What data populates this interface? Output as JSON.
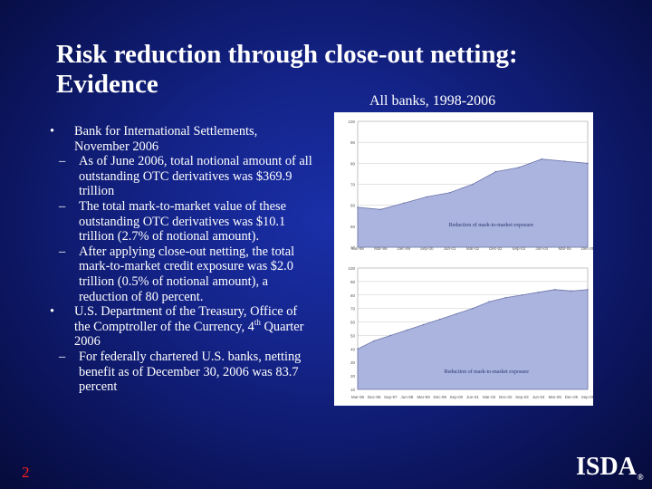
{
  "slide": {
    "title_line1": "Risk reduction through close-out netting:",
    "title_line2": "Evidence",
    "subtitle": "All banks, 1998-2006",
    "page_number": "2",
    "logo": "ISDA",
    "logo_mark": "®"
  },
  "bullets": [
    {
      "marker": "•",
      "text": "Bank for International Settlements, November 2006",
      "subs": [
        "As of June 2006, total notional amount of all outstanding OTC derivatives was $369.9 trillion",
        "The total mark-to-market value of these outstanding OTC derivatives was $10.1 trillion (2.7% of notional amount).",
        "After applying close-out netting, the total mark-to-market credit exposure was $2.0 trillion (0.5% of notional amount), a reduction of 80 percent."
      ]
    },
    {
      "marker": "•",
      "text_before_sup": "U.S. Department of the Treasury, Office of the Comptroller of the Currency, 4",
      "sup": "th",
      "text_after_sup": " Quarter 2006",
      "subs": [
        "For federally chartered U.S. banks, netting benefit as of December 30, 2006 was 83.7 percent"
      ]
    }
  ],
  "sub_marker": "–",
  "colors": {
    "background": "#14248a",
    "text": "#ffffff",
    "page_number": "#ff2020",
    "area_fill": "#aab4df",
    "area_line": "#6b74a8"
  },
  "chart_data": [
    {
      "type": "area",
      "annotation": "Reduction of mark-to-market exposure",
      "x": [
        "Jun-98",
        "Mar-99",
        "Dec-99",
        "Sep-00",
        "Jun-01",
        "Mar-02",
        "Dec-02",
        "Sep-03",
        "Jun-04",
        "Mar-05",
        "Dec-05"
      ],
      "ylim": [
        40,
        100
      ],
      "yticks": [
        40,
        50,
        60,
        70,
        80,
        90,
        100
      ],
      "grid": true,
      "series": [
        {
          "values": [
            59,
            58,
            61,
            64,
            66,
            70,
            76,
            78,
            82,
            81,
            80
          ]
        }
      ]
    },
    {
      "type": "area",
      "annotation": "Reduction of mark-to-market exposure",
      "x": [
        "Mar-96",
        "Dec-96",
        "Sep-97",
        "Jun-98",
        "Mar-99",
        "Dec-99",
        "Sep-00",
        "Jun-01",
        "Mar-02",
        "Dec-02",
        "Sep-03",
        "Jun-04",
        "Mar-05",
        "Dec-05",
        "Sep-06"
      ],
      "ylim": [
        10,
        100
      ],
      "yticks": [
        10,
        20,
        30,
        40,
        50,
        60,
        70,
        80,
        90,
        100
      ],
      "grid": true,
      "series": [
        {
          "values": [
            40,
            46,
            50,
            54,
            58,
            62,
            66,
            70,
            75,
            78,
            80,
            82,
            84,
            83,
            84
          ]
        }
      ]
    }
  ]
}
